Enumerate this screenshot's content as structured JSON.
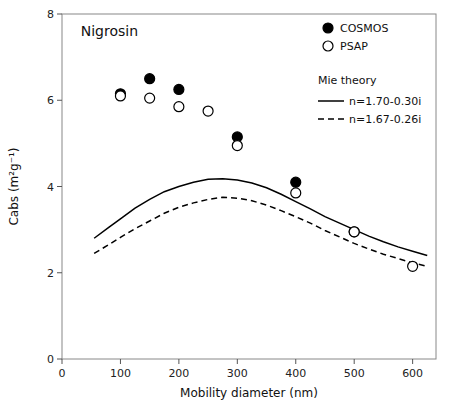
{
  "chart_data": {
    "type": "scatter",
    "title": "Nigrosin",
    "xlabel": "Mobility diameter (nm)",
    "ylabel": "Cabs (m²g⁻¹)",
    "legend_title": "Mie theory",
    "legend": "upper right",
    "grid": false,
    "xlim": [
      0,
      640
    ],
    "ylim": [
      0,
      8
    ],
    "xticks": [
      0,
      100,
      200,
      300,
      400,
      500,
      600
    ],
    "yticks": [
      0,
      2,
      4,
      6,
      8
    ],
    "series": [
      {
        "name": "n=1.70-0.30i",
        "type": "line",
        "line_style": "solid",
        "color": "black",
        "x": [
          55,
          80,
          100,
          125,
          150,
          175,
          200,
          225,
          250,
          275,
          300,
          325,
          350,
          375,
          400,
          425,
          450,
          475,
          500,
          525,
          550,
          575,
          600,
          625
        ],
        "values": [
          2.8,
          3.05,
          3.25,
          3.5,
          3.7,
          3.88,
          4.0,
          4.1,
          4.17,
          4.18,
          4.15,
          4.08,
          3.97,
          3.82,
          3.65,
          3.48,
          3.3,
          3.15,
          3.0,
          2.85,
          2.72,
          2.6,
          2.5,
          2.4
        ]
      },
      {
        "name": "n=1.67-0.26i",
        "type": "line",
        "line_style": "dashed",
        "color": "black",
        "x": [
          55,
          80,
          100,
          125,
          150,
          175,
          200,
          225,
          250,
          275,
          300,
          325,
          350,
          375,
          400,
          425,
          450,
          475,
          500,
          525,
          550,
          575,
          600,
          625
        ],
        "values": [
          2.45,
          2.65,
          2.82,
          3.02,
          3.2,
          3.38,
          3.52,
          3.62,
          3.7,
          3.75,
          3.73,
          3.67,
          3.57,
          3.44,
          3.3,
          3.15,
          2.98,
          2.83,
          2.68,
          2.55,
          2.43,
          2.33,
          2.23,
          2.15
        ]
      },
      {
        "name": "COSMOS",
        "type": "scatter",
        "marker": "circle",
        "color": "black",
        "x": [
          100,
          150,
          200,
          300,
          400,
          500
        ],
        "values": [
          6.15,
          6.5,
          6.25,
          5.15,
          4.1,
          2.95
        ]
      },
      {
        "name": "PSAP",
        "type": "scatter",
        "marker": "open-circle",
        "color": "black",
        "x": [
          100,
          150,
          200,
          250,
          300,
          400,
          500,
          600
        ],
        "values": [
          6.1,
          6.05,
          5.85,
          5.75,
          4.95,
          3.85,
          2.95,
          2.15
        ]
      }
    ]
  }
}
